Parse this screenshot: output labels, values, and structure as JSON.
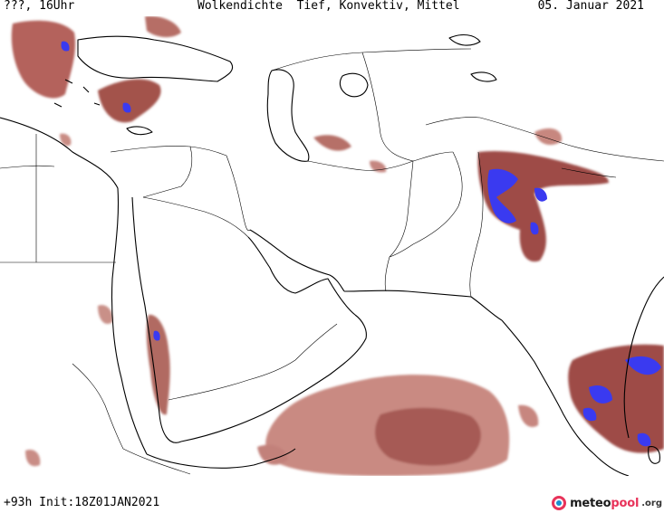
{
  "header": {
    "left": "???, 16Uhr",
    "title": "Wolkendichte  Tief, Konvektiv, Mittel",
    "date": "05. Januar 2021"
  },
  "footer": {
    "run_info": "+93h Init:18Z01JAN2021"
  },
  "brand": {
    "name_main": "meteo",
    "name_accent": "pool",
    "tld": ".org",
    "icon": "meteopool-logo-icon"
  },
  "map": {
    "legend_colors": {
      "cloud_light": "#e2b3ab",
      "cloud_medium": "#c57a72",
      "cloud_dense": "#9e4c46",
      "convective": "#3a3af0",
      "coastline": "#000000",
      "border": "#000000"
    }
  }
}
